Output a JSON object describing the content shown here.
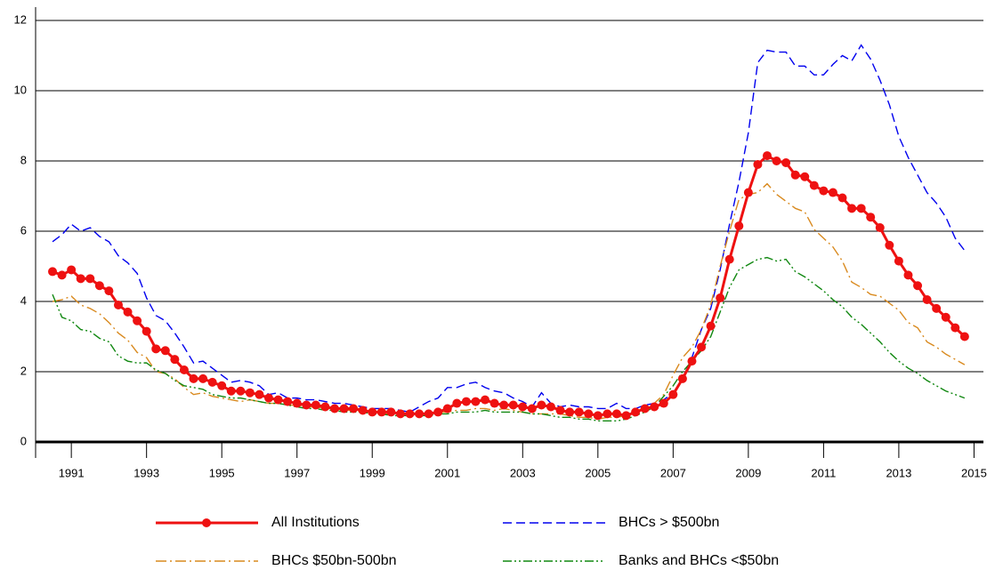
{
  "chart_data": {
    "type": "line",
    "x": [
      1990.5,
      1990.75,
      1991,
      1991.25,
      1991.5,
      1991.75,
      1992,
      1992.25,
      1992.5,
      1992.75,
      1993,
      1993.25,
      1993.5,
      1993.75,
      1994,
      1994.25,
      1994.5,
      1994.75,
      1995,
      1995.25,
      1995.5,
      1995.75,
      1996,
      1996.25,
      1996.5,
      1996.75,
      1997,
      1997.25,
      1997.5,
      1997.75,
      1998,
      1998.25,
      1998.5,
      1998.75,
      1999,
      1999.25,
      1999.5,
      1999.75,
      2000,
      2000.25,
      2000.5,
      2000.75,
      2001,
      2001.25,
      2001.5,
      2001.75,
      2002,
      2002.25,
      2002.5,
      2002.75,
      2003,
      2003.25,
      2003.5,
      2003.75,
      2004,
      2004.25,
      2004.5,
      2004.75,
      2005,
      2005.25,
      2005.5,
      2005.75,
      2006,
      2006.25,
      2006.5,
      2006.75,
      2007,
      2007.25,
      2007.5,
      2007.75,
      2008,
      2008.25,
      2008.5,
      2008.75,
      2009,
      2009.25,
      2009.5,
      2009.75,
      2010,
      2010.25,
      2010.5,
      2010.75,
      2011,
      2011.25,
      2011.5,
      2011.75,
      2012,
      2012.25,
      2012.5,
      2012.75,
      2013,
      2013.25,
      2013.5,
      2013.75,
      2014,
      2014.25,
      2014.5,
      2014.75
    ],
    "series": [
      {
        "name": "All Institutions",
        "color": "#ee1111",
        "style": "solid",
        "marker": "circle",
        "values": [
          4.85,
          4.75,
          4.9,
          4.65,
          4.65,
          4.45,
          4.3,
          3.9,
          3.7,
          3.45,
          3.15,
          2.65,
          2.6,
          2.35,
          2.05,
          1.8,
          1.8,
          1.7,
          1.6,
          1.45,
          1.45,
          1.4,
          1.35,
          1.25,
          1.2,
          1.15,
          1.1,
          1.05,
          1.05,
          1.0,
          0.95,
          0.95,
          0.95,
          0.9,
          0.85,
          0.85,
          0.85,
          0.8,
          0.8,
          0.8,
          0.8,
          0.85,
          0.95,
          1.1,
          1.15,
          1.15,
          1.2,
          1.1,
          1.05,
          1.05,
          1.0,
          0.95,
          1.05,
          1.0,
          0.9,
          0.85,
          0.85,
          0.8,
          0.75,
          0.8,
          0.8,
          0.75,
          0.85,
          0.95,
          1.0,
          1.1,
          1.35,
          1.8,
          2.3,
          2.7,
          3.3,
          4.1,
          5.2,
          6.15,
          7.1,
          7.9,
          8.15,
          8.0,
          7.95,
          7.6,
          7.55,
          7.3,
          7.15,
          7.1,
          6.95,
          6.65,
          6.65,
          6.4,
          6.1,
          5.6,
          5.15,
          4.75,
          4.45,
          4.05,
          3.8,
          3.55,
          3.25,
          3.0
        ]
      },
      {
        "name": "BHCs > $500bn",
        "color": "#0000ee",
        "style": "dashed",
        "values": [
          5.7,
          5.9,
          6.2,
          6.0,
          6.1,
          5.85,
          5.7,
          5.3,
          5.1,
          4.8,
          4.1,
          3.6,
          3.45,
          3.1,
          2.7,
          2.25,
          2.3,
          2.1,
          1.9,
          1.7,
          1.75,
          1.7,
          1.6,
          1.35,
          1.4,
          1.25,
          1.25,
          1.2,
          1.2,
          1.15,
          1.1,
          1.1,
          1.05,
          1.0,
          0.95,
          0.95,
          0.95,
          0.9,
          0.85,
          1.0,
          1.15,
          1.25,
          1.55,
          1.55,
          1.65,
          1.7,
          1.55,
          1.45,
          1.4,
          1.25,
          1.15,
          1.0,
          1.4,
          1.1,
          1.0,
          1.05,
          1.0,
          1.0,
          0.95,
          0.95,
          1.1,
          0.95,
          0.95,
          1.05,
          1.1,
          1.2,
          1.4,
          1.8,
          2.4,
          3.2,
          3.8,
          4.9,
          6.2,
          7.4,
          8.8,
          10.8,
          11.15,
          11.1,
          11.1,
          10.7,
          10.7,
          10.45,
          10.45,
          10.75,
          11.0,
          10.85,
          11.3,
          10.9,
          10.3,
          9.6,
          8.7,
          8.1,
          7.6,
          7.1,
          6.8,
          6.4,
          5.8,
          5.45
        ]
      },
      {
        "name": "BHCs $50bn-500bn",
        "color": "#d98a1f",
        "style": "dashdot",
        "values": [
          4.0,
          4.05,
          4.15,
          3.9,
          3.8,
          3.65,
          3.4,
          3.1,
          2.9,
          2.55,
          2.4,
          2.0,
          1.95,
          1.8,
          1.55,
          1.35,
          1.4,
          1.3,
          1.25,
          1.2,
          1.15,
          1.2,
          1.15,
          1.1,
          1.1,
          1.05,
          1.05,
          1.0,
          1.0,
          0.95,
          0.95,
          0.9,
          0.9,
          0.85,
          0.85,
          0.8,
          0.8,
          0.8,
          0.75,
          0.8,
          0.8,
          0.85,
          0.85,
          0.9,
          0.9,
          0.95,
          0.95,
          0.9,
          0.95,
          0.9,
          0.85,
          0.8,
          0.8,
          0.8,
          0.8,
          0.75,
          0.7,
          0.7,
          0.65,
          0.7,
          0.7,
          0.75,
          0.85,
          0.95,
          1.1,
          1.35,
          1.9,
          2.4,
          2.7,
          3.2,
          3.9,
          5.0,
          6.0,
          6.9,
          7.05,
          7.1,
          7.35,
          7.05,
          6.85,
          6.65,
          6.55,
          6.05,
          5.8,
          5.55,
          5.15,
          4.55,
          4.4,
          4.2,
          4.15,
          3.95,
          3.75,
          3.4,
          3.25,
          2.85,
          2.7,
          2.5,
          2.35,
          2.2
        ]
      },
      {
        "name": "Banks and BHCs <$50bn",
        "color": "#118811",
        "style": "dashdotdot",
        "values": [
          4.2,
          3.55,
          3.45,
          3.2,
          3.15,
          2.95,
          2.85,
          2.45,
          2.3,
          2.25,
          2.25,
          2.05,
          1.95,
          1.75,
          1.6,
          1.55,
          1.5,
          1.35,
          1.3,
          1.25,
          1.25,
          1.2,
          1.15,
          1.1,
          1.1,
          1.05,
          1.0,
          0.95,
          0.95,
          0.9,
          0.9,
          0.85,
          0.85,
          0.85,
          0.8,
          0.8,
          0.75,
          0.75,
          0.75,
          0.75,
          0.75,
          0.8,
          0.8,
          0.85,
          0.85,
          0.85,
          0.9,
          0.85,
          0.85,
          0.85,
          0.85,
          0.8,
          0.8,
          0.75,
          0.7,
          0.7,
          0.65,
          0.65,
          0.6,
          0.6,
          0.6,
          0.65,
          0.75,
          0.85,
          1.0,
          1.3,
          1.6,
          2.0,
          2.3,
          2.6,
          3.0,
          3.7,
          4.4,
          4.9,
          5.05,
          5.2,
          5.25,
          5.15,
          5.2,
          4.85,
          4.7,
          4.5,
          4.3,
          4.05,
          3.85,
          3.55,
          3.35,
          3.1,
          2.85,
          2.55,
          2.3,
          2.1,
          1.95,
          1.75,
          1.6,
          1.45,
          1.35,
          1.25
        ]
      }
    ],
    "xlim": [
      1990.05,
      2015.25
    ],
    "xticks": [
      1991,
      1993,
      1995,
      1997,
      1999,
      2001,
      2003,
      2005,
      2007,
      2009,
      2011,
      2013,
      2015
    ],
    "ylim": [
      0,
      12
    ],
    "yticks": [
      0,
      2,
      4,
      6,
      8,
      10,
      12
    ],
    "grid": true,
    "legend": "bottom"
  }
}
